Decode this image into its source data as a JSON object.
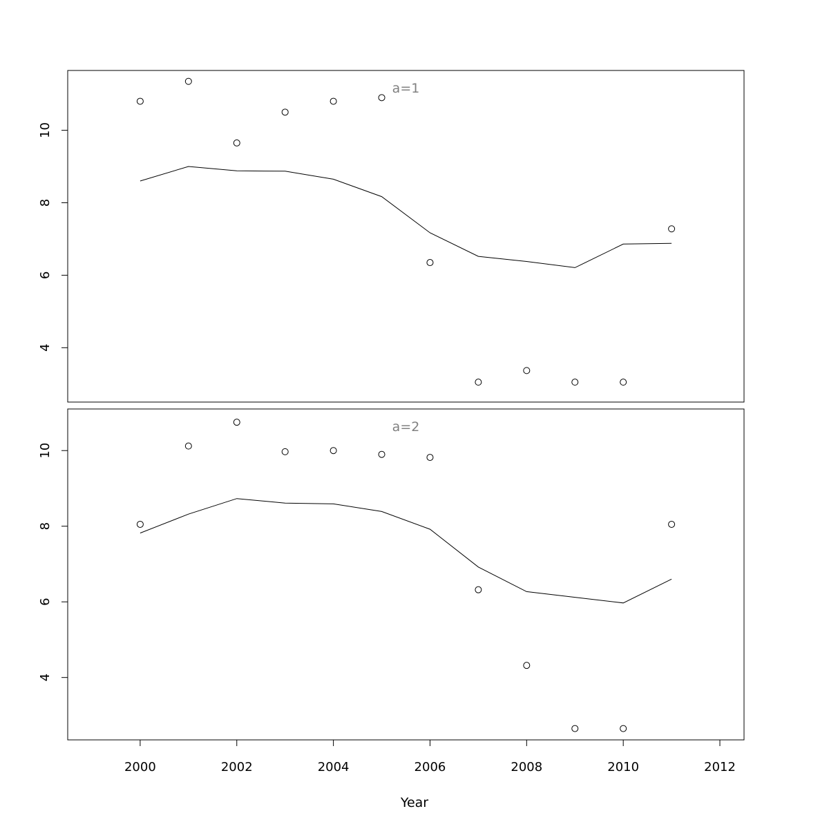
{
  "chart_data": {
    "type": "line",
    "xlabel": "Year",
    "x_ticks": [
      2000,
      2002,
      2004,
      2006,
      2008,
      2010,
      2012
    ],
    "xlim": [
      1998.5,
      2012.5
    ],
    "panels": [
      {
        "title": "a=1",
        "ylim": [
          2.5,
          11.65
        ],
        "y_ticks": [
          4,
          6,
          8,
          10
        ],
        "observed": {
          "x": [
            2000,
            2001,
            2002,
            2003,
            2004,
            2005,
            2006,
            2007,
            2008,
            2009,
            2010,
            2011
          ],
          "y": [
            10.8,
            11.35,
            9.65,
            10.5,
            10.8,
            10.9,
            6.35,
            3.05,
            3.37,
            3.05,
            3.05,
            7.28
          ]
        },
        "fitted": {
          "x": [
            2000,
            2001,
            2002,
            2003,
            2004,
            2005,
            2006,
            2007,
            2008,
            2009,
            2010,
            2011
          ],
          "y": [
            8.6,
            9.0,
            8.88,
            8.87,
            8.65,
            8.17,
            7.17,
            6.52,
            6.38,
            6.21,
            6.86,
            6.88
          ]
        }
      },
      {
        "title": "a=2",
        "ylim": [
          2.35,
          11.1
        ],
        "y_ticks": [
          4,
          6,
          8,
          10
        ],
        "observed": {
          "x": [
            2000,
            2001,
            2002,
            2003,
            2004,
            2005,
            2006,
            2007,
            2008,
            2009,
            2010,
            2011
          ],
          "y": [
            8.05,
            10.12,
            10.75,
            9.97,
            10.0,
            9.9,
            9.82,
            6.32,
            4.32,
            2.65,
            2.65,
            8.05
          ]
        },
        "fitted": {
          "x": [
            2000,
            2001,
            2002,
            2003,
            2004,
            2005,
            2006,
            2007,
            2008,
            2009,
            2010,
            2011
          ],
          "y": [
            7.82,
            8.32,
            8.73,
            8.61,
            8.59,
            8.39,
            7.92,
            6.92,
            6.27,
            6.12,
            5.97,
            6.6
          ]
        }
      }
    ]
  }
}
